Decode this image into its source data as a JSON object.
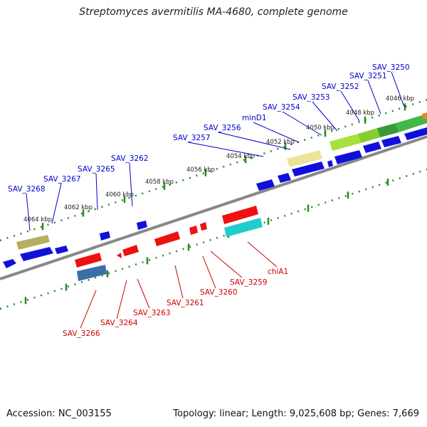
{
  "title": "Streptomyces avermitilis MA-4680, complete genome",
  "footer": {
    "accession": "Accession: NC_003155",
    "summary": "Topology: linear; Length: 9,025,608 bp; Genes: 7,669"
  },
  "colors": {
    "forward_label": "#0000cc",
    "reverse_label": "#cc0000",
    "tick": "#228b22",
    "axis": "#888888"
  },
  "ruler": [
    {
      "label": "4046 kbp"
    },
    {
      "label": "4048 kbp"
    },
    {
      "label": "4050 kbp"
    },
    {
      "label": "4052 kbp"
    },
    {
      "label": "4054 kbp"
    },
    {
      "label": "4056 kbp"
    },
    {
      "label": "4058 kbp"
    },
    {
      "label": "4060 kbp"
    },
    {
      "label": "4062 kbp"
    },
    {
      "label": "4064 kbp"
    }
  ],
  "forward_genes": [
    {
      "name": "SAV_3250"
    },
    {
      "name": "SAV_3251"
    },
    {
      "name": "SAV_3252"
    },
    {
      "name": "SAV_3253"
    },
    {
      "name": "SAV_3254"
    },
    {
      "name": "minD1"
    },
    {
      "name": "SAV_3256"
    },
    {
      "name": "SAV_3257"
    },
    {
      "name": "SAV_3262"
    },
    {
      "name": "SAV_3265"
    },
    {
      "name": "SAV_3267"
    },
    {
      "name": "SAV_3268"
    }
  ],
  "reverse_genes": [
    {
      "name": "chiA1"
    },
    {
      "name": "SAV_3259"
    },
    {
      "name": "SAV_3260"
    },
    {
      "name": "SAV_3261"
    },
    {
      "name": "SAV_3263"
    },
    {
      "name": "SAV_3264"
    },
    {
      "name": "SAV_3266"
    }
  ]
}
